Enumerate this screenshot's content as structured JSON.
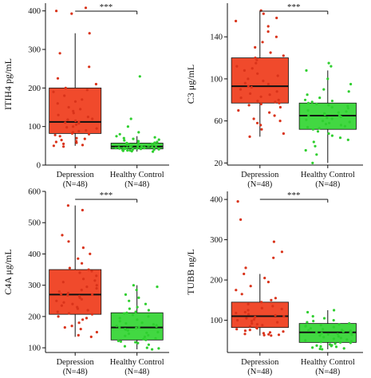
{
  "colors": {
    "depression_fill": "#f04a2c",
    "depression_point": "#d9331a",
    "control_fill": "#42d842",
    "control_point": "#2fcf2f",
    "axis": "#111111"
  },
  "chart_data": [
    {
      "type": "box",
      "ylabel": "ITIH4 pg/mL",
      "ylim": [
        0,
        420
      ],
      "yticks": [
        0,
        100,
        200,
        300,
        400
      ],
      "categories": [
        {
          "name": "Depression",
          "n_label": "(N=48)"
        },
        {
          "name": "Healthy Control",
          "n_label": "(N=48)"
        }
      ],
      "boxes": [
        {
          "q1": 82,
          "median": 112,
          "q3": 200,
          "whisker_low": 50,
          "whisker_high": 342
        },
        {
          "q1": 42,
          "median": 48,
          "q3": 57,
          "whisker_low": 35,
          "whisker_high": 75
        }
      ],
      "points": [
        [
          408,
          400,
          393,
          342,
          290,
          255,
          225,
          210,
          200,
          195,
          190,
          180,
          170,
          165,
          160,
          150,
          145,
          140,
          135,
          130,
          125,
          120,
          118,
          115,
          112,
          110,
          108,
          105,
          100,
          98,
          95,
          90,
          88,
          85,
          82,
          80,
          78,
          75,
          70,
          68,
          65,
          62,
          60,
          58,
          55,
          52,
          50,
          48
        ],
        [
          230,
          120,
          100,
          85,
          80,
          75,
          72,
          70,
          68,
          66,
          64,
          62,
          60,
          58,
          57,
          56,
          55,
          54,
          53,
          52,
          51,
          50,
          50,
          49,
          49,
          48,
          48,
          47,
          47,
          46,
          46,
          45,
          45,
          44,
          44,
          43,
          43,
          42,
          42,
          41,
          40,
          40,
          39,
          38,
          38,
          37,
          36,
          35
        ]
      ],
      "significance": "***"
    },
    {
      "type": "box",
      "ylabel": "C3 μg/mL",
      "ylim": [
        18,
        172
      ],
      "yticks": [
        20,
        60,
        100,
        140
      ],
      "categories": [
        {
          "name": "Depression",
          "n_label": "(N=48)"
        },
        {
          "name": "Healthy Control",
          "n_label": "(N=48)"
        }
      ],
      "boxes": [
        {
          "q1": 77,
          "median": 93,
          "q3": 120,
          "whisker_low": 45,
          "whisker_high": 165
        },
        {
          "q1": 52,
          "median": 65,
          "q3": 77,
          "whisker_low": 20,
          "whisker_high": 108
        }
      ],
      "points": [
        [
          165,
          162,
          158,
          155,
          150,
          145,
          140,
          135,
          130,
          125,
          122,
          120,
          118,
          115,
          112,
          110,
          108,
          105,
          103,
          100,
          98,
          96,
          95,
          93,
          92,
          90,
          88,
          86,
          85,
          83,
          82,
          80,
          79,
          78,
          77,
          76,
          75,
          73,
          70,
          68,
          65,
          62,
          60,
          58,
          56,
          52,
          48,
          45
        ],
        [
          115,
          112,
          108,
          100,
          95,
          90,
          88,
          85,
          82,
          80,
          79,
          78,
          77,
          76,
          75,
          74,
          73,
          72,
          70,
          69,
          68,
          67,
          66,
          65,
          65,
          64,
          63,
          62,
          61,
          60,
          59,
          58,
          57,
          56,
          55,
          54,
          53,
          52,
          50,
          48,
          46,
          44,
          42,
          40,
          36,
          32,
          28,
          20
        ]
      ],
      "significance": "***"
    },
    {
      "type": "box",
      "ylabel": "C4A μg/mL",
      "ylim": [
        85,
        600
      ],
      "yticks": [
        100,
        200,
        300,
        400,
        500,
        600
      ],
      "categories": [
        {
          "name": "Depression",
          "n_label": "(N=48)"
        },
        {
          "name": "Healthy Control",
          "n_label": "(N=48)"
        }
      ],
      "boxes": [
        {
          "q1": 207,
          "median": 270,
          "q3": 350,
          "whisker_low": 135,
          "whisker_high": 555
        },
        {
          "q1": 125,
          "median": 165,
          "q3": 212,
          "whisker_low": 95,
          "whisker_high": 300
        }
      ],
      "points": [
        [
          555,
          540,
          460,
          440,
          420,
          400,
          385,
          370,
          355,
          350,
          345,
          340,
          330,
          320,
          315,
          310,
          300,
          295,
          290,
          285,
          280,
          275,
          272,
          270,
          268,
          265,
          260,
          255,
          250,
          245,
          240,
          235,
          230,
          225,
          220,
          215,
          210,
          207,
          200,
          195,
          190,
          180,
          170,
          165,
          160,
          150,
          140,
          135
        ],
        [
          300,
          295,
          285,
          270,
          260,
          250,
          240,
          230,
          225,
          220,
          215,
          212,
          210,
          205,
          200,
          195,
          190,
          185,
          180,
          178,
          175,
          172,
          170,
          168,
          166,
          165,
          163,
          160,
          158,
          155,
          150,
          148,
          145,
          140,
          138,
          135,
          130,
          128,
          125,
          122,
          120,
          118,
          115,
          110,
          105,
          100,
          98,
          95
        ]
      ],
      "significance": "***"
    },
    {
      "type": "box",
      "ylabel": "TUBB ng/L",
      "ylim": [
        20,
        420
      ],
      "yticks": [
        100,
        200,
        300,
        400
      ],
      "categories": [
        {
          "name": "Depression",
          "n_label": "(N=48)"
        },
        {
          "name": "Healthy Control",
          "n_label": "(N=48)"
        }
      ],
      "boxes": [
        {
          "q1": 82,
          "median": 110,
          "q3": 145,
          "whisker_low": 62,
          "whisker_high": 215
        },
        {
          "q1": 45,
          "median": 70,
          "q3": 92,
          "whisker_low": 28,
          "whisker_high": 125
        }
      ],
      "points": [
        [
          395,
          350,
          295,
          270,
          255,
          230,
          215,
          205,
          195,
          185,
          175,
          165,
          155,
          150,
          145,
          140,
          135,
          130,
          128,
          125,
          120,
          118,
          115,
          112,
          110,
          108,
          105,
          102,
          100,
          98,
          95,
          92,
          90,
          88,
          85,
          82,
          80,
          78,
          76,
          74,
          72,
          70,
          68,
          66,
          65,
          64,
          63,
          62
        ],
        [
          125,
          120,
          110,
          105,
          100,
          98,
          95,
          92,
          90,
          88,
          86,
          85,
          83,
          80,
          78,
          76,
          75,
          74,
          72,
          71,
          70,
          69,
          68,
          66,
          65,
          64,
          62,
          60,
          58,
          56,
          54,
          52,
          50,
          48,
          46,
          45,
          44,
          42,
          40,
          38,
          37,
          36,
          35,
          34,
          32,
          30,
          29,
          28
        ]
      ],
      "significance": "***"
    }
  ]
}
